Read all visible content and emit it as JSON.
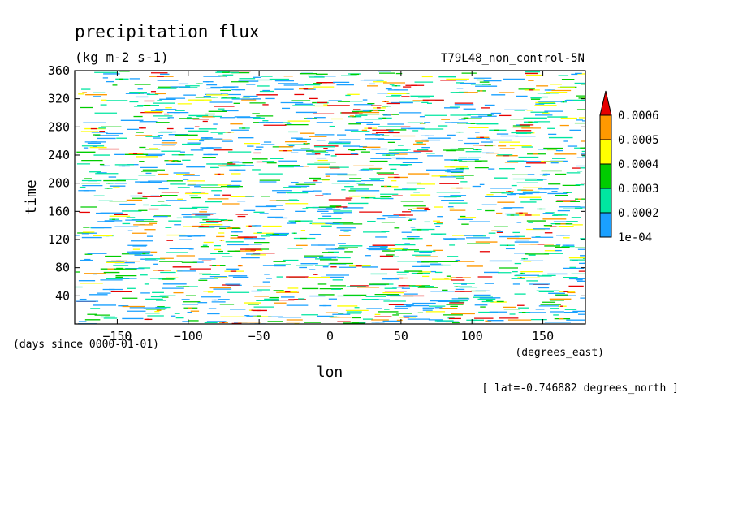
{
  "chart_data": {
    "type": "heatmap",
    "title": "precipitation flux",
    "units": "(kg m-2 s-1)",
    "run_label": "T79L48_non_control-5N",
    "xlabel": "lon",
    "x_units": "(degrees_east)",
    "ylabel": "time",
    "y_units": "(days since 0000-01-01)",
    "footer": "[ lat=-0.746882 degrees_north ]",
    "xlim": [
      -180,
      180
    ],
    "ylim": [
      0,
      360
    ],
    "x_ticks": [
      -150,
      -100,
      -50,
      0,
      50,
      100,
      150
    ],
    "y_ticks": [
      40,
      80,
      120,
      160,
      200,
      240,
      280,
      320,
      360
    ],
    "grid": false,
    "legend": "right",
    "colorbar": {
      "labels": [
        "1e-04",
        "0.0002",
        "0.0003",
        "0.0004",
        "0.0005",
        "0.0006"
      ],
      "colors": [
        "#1aa0ff",
        "#00e6a0",
        "#00cc00",
        "#ffff00",
        "#ff9900",
        "#e60000"
      ]
    }
  }
}
